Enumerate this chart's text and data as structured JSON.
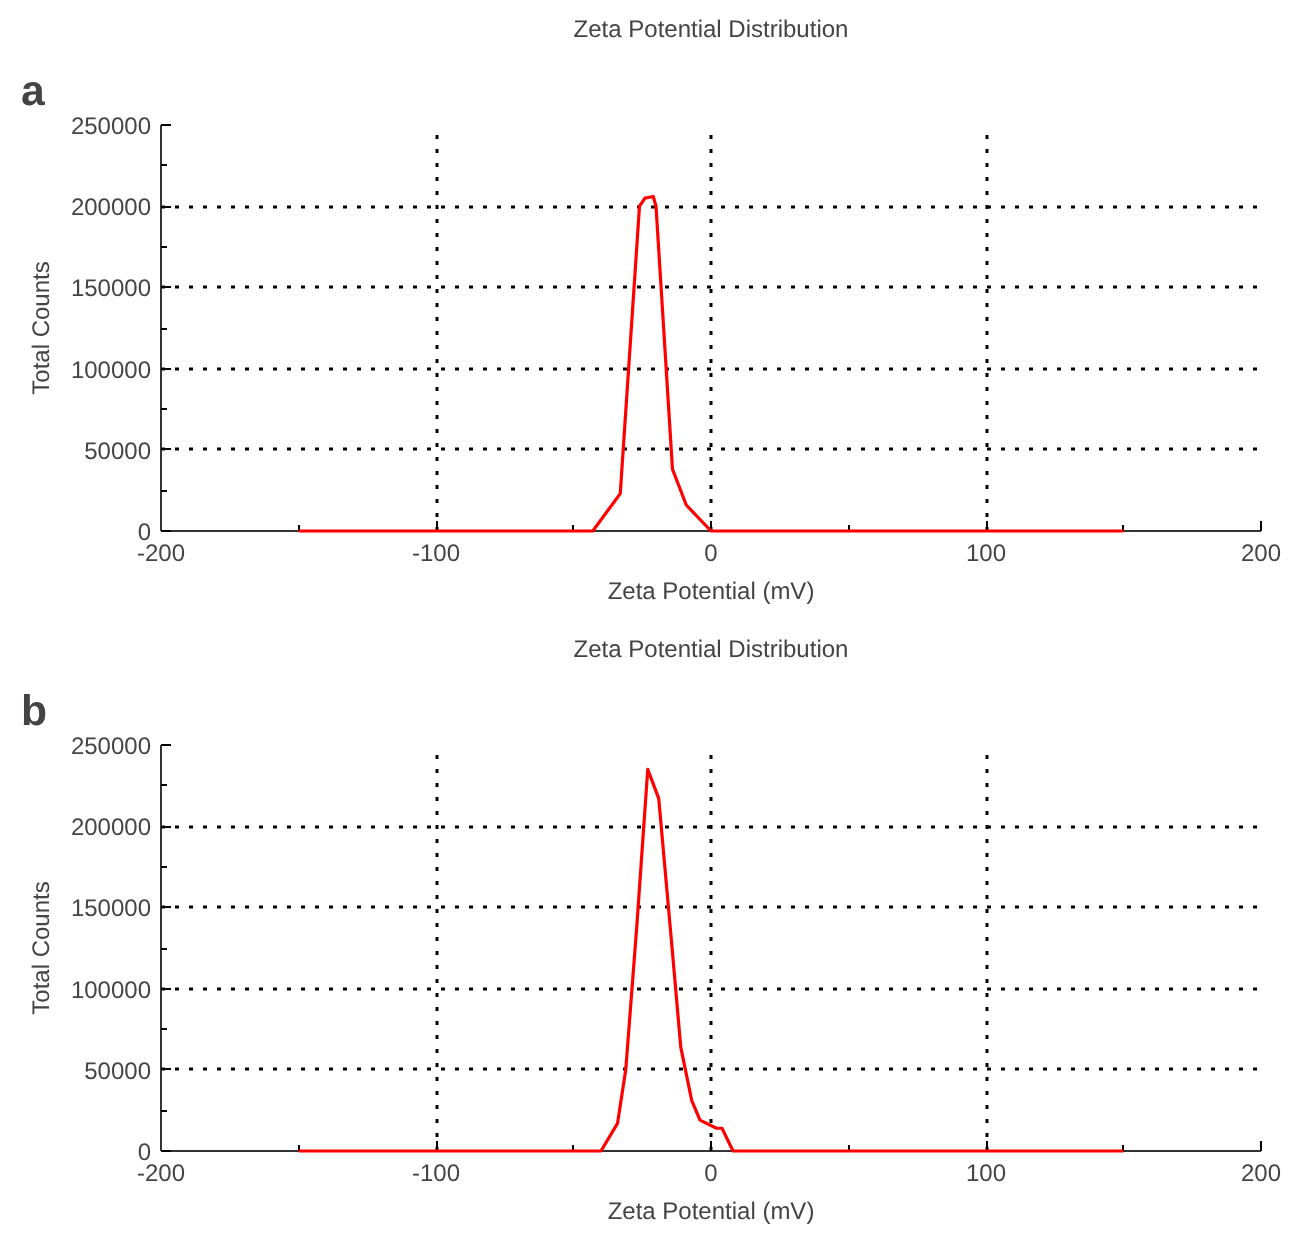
{
  "chart_data": [
    {
      "type": "line",
      "title": "Zeta Potential Distribution",
      "xlabel": "Zeta Potential (mV)",
      "ylabel": "Total Counts",
      "annotations": [
        "a"
      ],
      "x": [
        -150,
        -43,
        -33,
        -26,
        -24,
        -21,
        -20,
        -14,
        -9,
        0,
        150
      ],
      "series": [
        {
          "color": "#ff0000",
          "values": [
            0,
            0,
            23000,
            200000,
            205000,
            206000,
            200000,
            38000,
            16000,
            0,
            0
          ]
        }
      ],
      "xlim": [
        -200,
        200
      ],
      "xticks": [
        -200,
        -100,
        0,
        100,
        200
      ],
      "ylim": [
        0,
        250000
      ],
      "yticks": [
        0,
        50000,
        100000,
        150000,
        200000,
        250000
      ],
      "grid": true,
      "line_style": "solid"
    },
    {
      "type": "line",
      "title": "Zeta Potential Distribution",
      "xlabel": "Zeta Potential (mV)",
      "ylabel": "Total Counts",
      "annotations": [
        "b"
      ],
      "x": [
        -150,
        -40,
        -34,
        -31,
        -27,
        -23,
        -19,
        -14,
        -11,
        -7,
        -4,
        2,
        4,
        8,
        150
      ],
      "series": [
        {
          "color": "#ff0000",
          "values": [
            0,
            0,
            17000,
            50000,
            138000,
            235000,
            217000,
            122000,
            64000,
            31000,
            19000,
            14000,
            14000,
            0,
            0
          ]
        }
      ],
      "xlim": [
        -200,
        200
      ],
      "xticks": [
        -200,
        -100,
        0,
        100,
        200
      ],
      "ylim": [
        0,
        250000
      ],
      "yticks": [
        0,
        50000,
        100000,
        150000,
        200000,
        250000
      ],
      "grid": true,
      "line_style": "solid"
    }
  ]
}
